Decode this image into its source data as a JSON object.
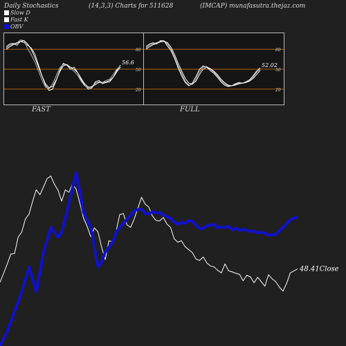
{
  "header": {
    "left": "Daily Stochastics",
    "center": "(14,3,3) Charts for 511628",
    "right": "(IMCAP) munafasutra.thejaz.com"
  },
  "legend": [
    {
      "label": "Slow  D",
      "color": "#ffffff"
    },
    {
      "label": "Fast K",
      "color": "#ffffff"
    },
    {
      "label": "OBV",
      "color": "#1010cc"
    }
  ],
  "chart_data": [
    {
      "type": "line",
      "panel": "FAST",
      "levels": [
        80,
        50,
        20
      ],
      "level_labels": [
        "80",
        "50",
        "20"
      ],
      "ylim": [
        0,
        100
      ],
      "last_value_label": "56.6",
      "series": [
        {
          "values": [
            84,
            88,
            89,
            86,
            92,
            90,
            86,
            82,
            73,
            57,
            40,
            26,
            18,
            20,
            33,
            48,
            59,
            56,
            50,
            53,
            45,
            34,
            26,
            20,
            22,
            31,
            33,
            28,
            30,
            31,
            38,
            48,
            56
          ]
        },
        {
          "values": [
            82,
            86,
            88,
            90,
            94,
            93,
            81,
            72,
            61,
            48,
            34,
            23,
            21,
            28,
            40,
            52,
            57,
            57,
            51,
            47,
            41,
            32,
            25,
            22,
            24,
            29,
            31,
            30,
            33,
            35,
            42,
            50,
            55
          ]
        },
        {
          "values": [
            80,
            84,
            87,
            89,
            92,
            93,
            88,
            80,
            68,
            54,
            40,
            28,
            22,
            24,
            34,
            46,
            55,
            57,
            53,
            50,
            45,
            36,
            28,
            23,
            23,
            27,
            30,
            30,
            31,
            33,
            38,
            46,
            53
          ]
        }
      ]
    },
    {
      "type": "line",
      "panel": "FULL",
      "levels": [
        80,
        50,
        20
      ],
      "level_labels": [
        "80",
        "50",
        "20"
      ],
      "ylim": [
        0,
        100
      ],
      "last_value_label": "52.02",
      "series": [
        {
          "values": [
            84,
            88,
            90,
            88,
            93,
            93,
            85,
            78,
            66,
            52,
            40,
            30,
            25,
            29,
            39,
            50,
            55,
            53,
            48,
            44,
            38,
            31,
            26,
            24,
            25,
            28,
            30,
            29,
            31,
            34,
            40,
            47,
            52
          ]
        },
        {
          "values": [
            82,
            86,
            88,
            90,
            92,
            93,
            88,
            80,
            68,
            55,
            43,
            32,
            26,
            27,
            35,
            46,
            53,
            54,
            50,
            46,
            40,
            33,
            28,
            25,
            25,
            27,
            29,
            29,
            30,
            33,
            38,
            45,
            50
          ]
        },
        {
          "values": [
            80,
            84,
            87,
            89,
            91,
            92,
            90,
            83,
            72,
            59,
            47,
            36,
            29,
            28,
            32,
            42,
            50,
            53,
            51,
            47,
            42,
            35,
            30,
            26,
            25,
            26,
            28,
            29,
            30,
            32,
            36,
            42,
            48
          ]
        }
      ]
    },
    {
      "type": "line",
      "panel": "main",
      "close_label": "48.41",
      "close_suffix": "Close",
      "series": [
        {
          "name": "Close",
          "color": "#ffffff",
          "values": [
            2.9,
            4.7,
            6.6,
            8.6,
            8.7,
            12.0,
            13.1,
            15.7,
            16.7,
            19.3,
            21.6,
            20.6,
            22.2,
            23.9,
            24.4,
            22.7,
            21.5,
            19.3,
            21.6,
            21.1,
            22.8,
            21.7,
            18.9,
            15.9,
            14.2,
            12.1,
            13.9,
            13.1,
            10.0,
            7.5,
            11.3,
            11.1,
            13.2,
            16.6,
            16.8,
            14.5,
            14.0,
            15.7,
            17.9,
            20.1,
            18.7,
            18.1,
            16.3,
            15.4,
            15.3,
            16.0,
            14.7,
            14.0,
            11.7,
            11.0,
            11.3,
            10.1,
            9.5,
            8.9,
            7.6,
            7.3,
            8.0,
            6.8,
            6.2,
            6.0,
            5.3,
            4.8,
            6.6,
            5.2,
            5.0,
            4.7,
            4.5,
            3.2,
            4.3,
            4.0,
            2.8,
            3.9,
            3.0,
            2.1,
            4.4,
            3.6,
            3.0,
            1.9,
            1.1,
            2.7,
            4.8,
            5.2,
            5.6
          ]
        },
        {
          "name": "OBV",
          "color": "#1010cc",
          "values": [
            -10.0,
            -8.5,
            -7.0,
            -5.0,
            -3.0,
            -1.0,
            1.0,
            3.5,
            6.0,
            3.5,
            1.0,
            5.0,
            9.0,
            11.5,
            14.0,
            13.0,
            12.0,
            13.0,
            16.0,
            19.0,
            22.0,
            25.0,
            21.0,
            17.0,
            15.5,
            14.0,
            10.0,
            6.0,
            7.0,
            9.0,
            10.0,
            11.0,
            13.0,
            14.0,
            14.8,
            15.6,
            16.5,
            17.4,
            17.6,
            17.7,
            16.8,
            16.7,
            17.2,
            16.9,
            17.0,
            16.5,
            16.2,
            15.8,
            15.1,
            14.6,
            15.0,
            14.8,
            15.4,
            15.2,
            14.4,
            13.8,
            13.8,
            14.3,
            14.5,
            14.6,
            13.9,
            14.1,
            14.0,
            14.2,
            13.5,
            13.8,
            13.4,
            13.6,
            13.4,
            13.1,
            13.3,
            12.9,
            13.0,
            12.8,
            12.4,
            12.5,
            12.6,
            13.3,
            14.0,
            14.8,
            15.5,
            15.9,
            16.0
          ]
        }
      ]
    }
  ]
}
